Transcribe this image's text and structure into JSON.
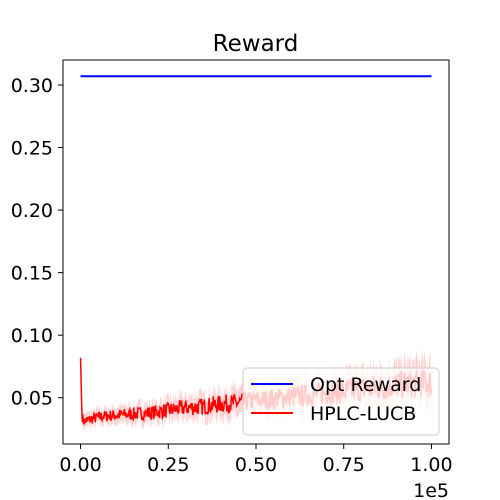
{
  "chart_data": {
    "type": "line",
    "title": "Reward",
    "xlabel": "",
    "ylabel": "",
    "x_offset_label": "1e5",
    "xlim": [
      -0.05,
      1.05
    ],
    "ylim": [
      0.013,
      0.32
    ],
    "xticks": [
      0.0,
      0.25,
      0.5,
      0.75,
      1.0
    ],
    "xtick_labels": [
      "0.00",
      "0.25",
      "0.50",
      "0.75",
      "1.00"
    ],
    "yticks": [
      0.05,
      0.1,
      0.15,
      0.2,
      0.25,
      0.3
    ],
    "ytick_labels": [
      "0.05",
      "0.10",
      "0.15",
      "0.20",
      "0.25",
      "0.30"
    ],
    "grid": false,
    "legend_position": "lower-right",
    "series": [
      {
        "name": "Opt Reward",
        "color": "#0000ff",
        "x": [
          0.0,
          1.0
        ],
        "values": [
          0.307,
          0.307
        ]
      },
      {
        "name": "HPLC-LUCB",
        "color": "#ff0000",
        "band_color": "#ffc8c8",
        "x": [
          0.0,
          0.004,
          0.01,
          0.03,
          0.06,
          0.1,
          0.15,
          0.2,
          0.25,
          0.3,
          0.35,
          0.4,
          0.45,
          0.5,
          0.55,
          0.6,
          0.65,
          0.7,
          0.75,
          0.8,
          0.85,
          0.9,
          0.95,
          1.0
        ],
        "values": [
          0.082,
          0.035,
          0.031,
          0.033,
          0.035,
          0.036,
          0.037,
          0.038,
          0.04,
          0.042,
          0.043,
          0.045,
          0.046,
          0.048,
          0.049,
          0.051,
          0.052,
          0.054,
          0.055,
          0.057,
          0.058,
          0.06,
          0.061,
          0.062
        ]
      }
    ]
  }
}
